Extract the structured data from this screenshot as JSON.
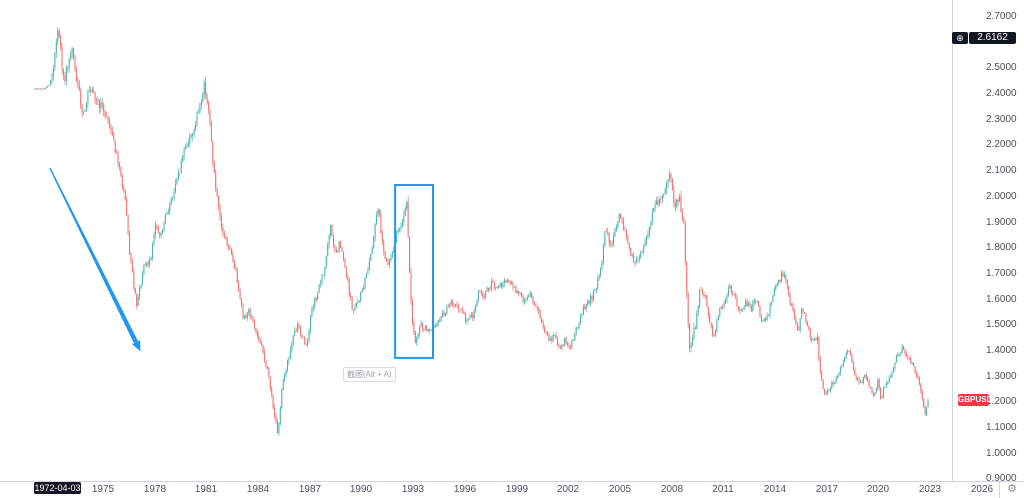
{
  "price_axis": {
    "ticks": [
      "2.7000",
      "2.5000",
      "2.4000",
      "2.3000",
      "2.2000",
      "2.1000",
      "2.0000",
      "1.9000",
      "1.8000",
      "1.7000",
      "1.6000",
      "1.5000",
      "1.4000",
      "1.3000",
      "1.2000",
      "1.1000",
      "1.0000",
      "0.9000"
    ],
    "crosshair_price": "2.6162",
    "add_alert_icon": "⊕",
    "symbol_label": "GBPUSD",
    "symbol_label_color": "#f23645"
  },
  "time_axis": {
    "ticks": [
      "1975",
      "1978",
      "1981",
      "1984",
      "1987",
      "1990",
      "1993",
      "1996",
      "1999",
      "2002",
      "2005",
      "2008",
      "2011",
      "2014",
      "2017",
      "2020",
      "2023",
      "2026"
    ],
    "crosshair_date": "1972-04-03",
    "settings_icon": "⚙"
  },
  "hint_badge": {
    "text": "截图(Alt + A)"
  },
  "chart_data": {
    "type": "candlestick",
    "symbol": "GBPUSD",
    "visible_time_range": [
      1971.0,
      2026.2
    ],
    "visible_price_range": [
      0.88,
      2.72
    ],
    "x_ticks_years": [
      1975,
      1978,
      1981,
      1984,
      1987,
      1990,
      1993,
      1996,
      1999,
      2002,
      2005,
      2008,
      2011,
      2014,
      2017,
      2020,
      2023,
      2026
    ],
    "y_ticks_prices": [
      2.7,
      2.5,
      2.4,
      2.3,
      2.2,
      2.1,
      2.0,
      1.9,
      1.8,
      1.7,
      1.6,
      1.5,
      1.4,
      1.3,
      1.2,
      1.1,
      1.0,
      0.9
    ],
    "grid": false,
    "colors": {
      "up": "#26a69a",
      "down": "#ef5350",
      "drawing": "#2196f3",
      "crosshair_badge": "#131722"
    },
    "crosshair": {
      "date": "1972-04-03",
      "price": 2.6162
    },
    "last_price": 1.21,
    "anchors": [
      [
        1971.0,
        2.42
      ],
      [
        1971.6,
        2.42
      ],
      [
        1971.95,
        2.44
      ],
      [
        1972.15,
        2.52
      ],
      [
        1972.35,
        2.65
      ],
      [
        1972.5,
        2.6
      ],
      [
        1972.68,
        2.45
      ],
      [
        1972.95,
        2.49
      ],
      [
        1973.2,
        2.57
      ],
      [
        1973.55,
        2.42
      ],
      [
        1973.85,
        2.32
      ],
      [
        1974.15,
        2.41
      ],
      [
        1974.6,
        2.38
      ],
      [
        1975.1,
        2.33
      ],
      [
        1975.5,
        2.26
      ],
      [
        1975.9,
        2.12
      ],
      [
        1976.25,
        2.01
      ],
      [
        1976.55,
        1.78
      ],
      [
        1976.95,
        1.57
      ],
      [
        1977.35,
        1.72
      ],
      [
        1977.75,
        1.75
      ],
      [
        1978.0,
        1.89
      ],
      [
        1978.35,
        1.84
      ],
      [
        1978.7,
        1.94
      ],
      [
        1979.05,
        2.0
      ],
      [
        1979.45,
        2.1
      ],
      [
        1979.75,
        2.2
      ],
      [
        1980.0,
        2.22
      ],
      [
        1980.35,
        2.28
      ],
      [
        1980.7,
        2.38
      ],
      [
        1980.9,
        2.44
      ],
      [
        1981.15,
        2.32
      ],
      [
        1981.5,
        2.05
      ],
      [
        1981.85,
        1.88
      ],
      [
        1982.2,
        1.82
      ],
      [
        1982.6,
        1.74
      ],
      [
        1982.95,
        1.62
      ],
      [
        1983.15,
        1.52
      ],
      [
        1983.45,
        1.56
      ],
      [
        1983.8,
        1.49
      ],
      [
        1984.15,
        1.42
      ],
      [
        1984.5,
        1.34
      ],
      [
        1984.85,
        1.2
      ],
      [
        1985.15,
        1.06
      ],
      [
        1985.4,
        1.28
      ],
      [
        1985.7,
        1.35
      ],
      [
        1986.0,
        1.44
      ],
      [
        1986.3,
        1.5
      ],
      [
        1986.6,
        1.45
      ],
      [
        1986.8,
        1.42
      ],
      [
        1987.1,
        1.55
      ],
      [
        1987.45,
        1.63
      ],
      [
        1987.8,
        1.7
      ],
      [
        1988.2,
        1.88
      ],
      [
        1988.5,
        1.77
      ],
      [
        1988.75,
        1.82
      ],
      [
        1989.1,
        1.7
      ],
      [
        1989.5,
        1.55
      ],
      [
        1989.85,
        1.6
      ],
      [
        1990.2,
        1.67
      ],
      [
        1990.6,
        1.8
      ],
      [
        1990.95,
        1.97
      ],
      [
        1991.2,
        1.83
      ],
      [
        1991.5,
        1.72
      ],
      [
        1991.8,
        1.79
      ],
      [
        1992.1,
        1.86
      ],
      [
        1992.45,
        1.93
      ],
      [
        1992.62,
        2.0
      ],
      [
        1992.75,
        1.75
      ],
      [
        1992.95,
        1.52
      ],
      [
        1993.12,
        1.42
      ],
      [
        1993.4,
        1.5
      ],
      [
        1993.7,
        1.49
      ],
      [
        1994.0,
        1.47
      ],
      [
        1994.4,
        1.51
      ],
      [
        1994.9,
        1.56
      ],
      [
        1995.3,
        1.59
      ],
      [
        1995.8,
        1.55
      ],
      [
        1996.1,
        1.52
      ],
      [
        1996.5,
        1.54
      ],
      [
        1996.85,
        1.64
      ],
      [
        1997.1,
        1.61
      ],
      [
        1997.5,
        1.66
      ],
      [
        1997.9,
        1.64
      ],
      [
        1998.3,
        1.67
      ],
      [
        1998.7,
        1.66
      ],
      [
        1999.0,
        1.63
      ],
      [
        1999.4,
        1.6
      ],
      [
        1999.8,
        1.62
      ],
      [
        2000.2,
        1.56
      ],
      [
        2000.6,
        1.48
      ],
      [
        2000.9,
        1.44
      ],
      [
        2001.2,
        1.46
      ],
      [
        2001.5,
        1.41
      ],
      [
        2001.8,
        1.44
      ],
      [
        2002.1,
        1.42
      ],
      [
        2002.45,
        1.48
      ],
      [
        2002.85,
        1.56
      ],
      [
        2003.2,
        1.59
      ],
      [
        2003.6,
        1.64
      ],
      [
        2003.9,
        1.72
      ],
      [
        2004.15,
        1.89
      ],
      [
        2004.45,
        1.8
      ],
      [
        2004.95,
        1.93
      ],
      [
        2005.3,
        1.86
      ],
      [
        2005.85,
        1.73
      ],
      [
        2006.2,
        1.78
      ],
      [
        2006.6,
        1.86
      ],
      [
        2006.95,
        1.96
      ],
      [
        2007.3,
        1.99
      ],
      [
        2007.6,
        2.03
      ],
      [
        2007.9,
        2.09
      ],
      [
        2008.15,
        1.97
      ],
      [
        2008.45,
        1.99
      ],
      [
        2008.7,
        1.9
      ],
      [
        2008.88,
        1.62
      ],
      [
        2009.05,
        1.41
      ],
      [
        2009.35,
        1.49
      ],
      [
        2009.65,
        1.64
      ],
      [
        2009.95,
        1.61
      ],
      [
        2010.15,
        1.53
      ],
      [
        2010.45,
        1.45
      ],
      [
        2010.75,
        1.56
      ],
      [
        2011.0,
        1.58
      ],
      [
        2011.3,
        1.65
      ],
      [
        2011.65,
        1.61
      ],
      [
        2011.95,
        1.55
      ],
      [
        2012.3,
        1.59
      ],
      [
        2012.6,
        1.56
      ],
      [
        2012.9,
        1.61
      ],
      [
        2013.2,
        1.51
      ],
      [
        2013.55,
        1.53
      ],
      [
        2013.9,
        1.63
      ],
      [
        2014.2,
        1.67
      ],
      [
        2014.5,
        1.71
      ],
      [
        2014.85,
        1.6
      ],
      [
        2015.15,
        1.52
      ],
      [
        2015.35,
        1.47
      ],
      [
        2015.55,
        1.56
      ],
      [
        2015.85,
        1.51
      ],
      [
        2016.15,
        1.43
      ],
      [
        2016.45,
        1.45
      ],
      [
        2016.6,
        1.33
      ],
      [
        2016.85,
        1.23
      ],
      [
        2017.1,
        1.25
      ],
      [
        2017.5,
        1.29
      ],
      [
        2017.9,
        1.35
      ],
      [
        2018.3,
        1.41
      ],
      [
        2018.65,
        1.3
      ],
      [
        2018.95,
        1.27
      ],
      [
        2019.2,
        1.31
      ],
      [
        2019.55,
        1.25
      ],
      [
        2019.75,
        1.21
      ],
      [
        2019.95,
        1.3
      ],
      [
        2020.18,
        1.2
      ],
      [
        2020.3,
        1.25
      ],
      [
        2020.55,
        1.28
      ],
      [
        2020.75,
        1.31
      ],
      [
        2020.95,
        1.36
      ],
      [
        2021.15,
        1.39
      ],
      [
        2021.4,
        1.41
      ],
      [
        2021.75,
        1.37
      ],
      [
        2022.0,
        1.35
      ],
      [
        2022.25,
        1.3
      ],
      [
        2022.5,
        1.22
      ],
      [
        2022.72,
        1.15
      ],
      [
        2022.88,
        1.21
      ]
    ],
    "drawings": [
      {
        "type": "arrow",
        "from": [
          1971.92,
          2.112
        ],
        "to": [
          1976.97,
          1.427
        ],
        "color": "#2196f3"
      },
      {
        "type": "rectangle",
        "from": [
          1991.95,
          2.046
        ],
        "to": [
          1994.15,
          1.373
        ],
        "color": "#2196f3"
      }
    ]
  }
}
